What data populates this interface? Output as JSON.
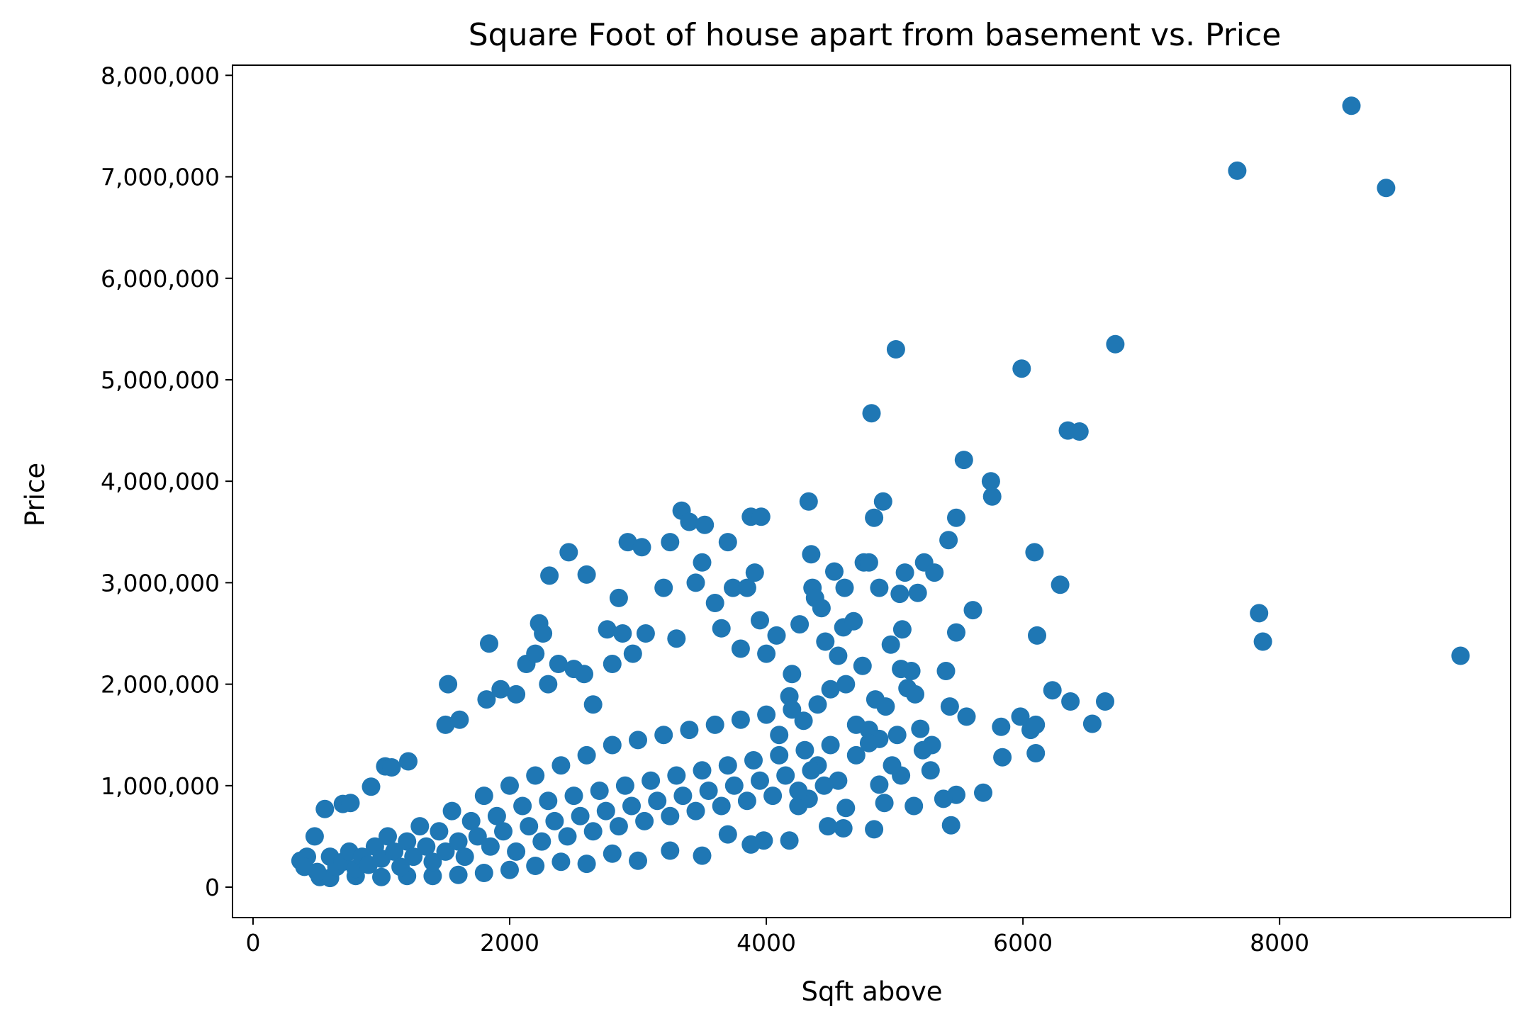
{
  "chart_data": {
    "type": "scatter",
    "title": "Square Foot of house apart from basement vs. Price",
    "xlabel": "Sqft above",
    "ylabel": "Price",
    "xlim": [
      -160,
      9800
    ],
    "ylim": [
      -300000,
      8100000
    ],
    "xticks": [
      0,
      2000,
      4000,
      6000,
      8000
    ],
    "xtick_labels": [
      "0",
      "2000",
      "4000",
      "6000",
      "8000"
    ],
    "yticks": [
      0,
      1000000,
      2000000,
      3000000,
      4000000,
      5000000,
      6000000,
      7000000,
      8000000
    ],
    "ytick_labels": [
      "0",
      "1,000,000",
      "2,000,000",
      "3,000,000",
      "4,000,000",
      "5,000,000",
      "6,000,000",
      "7,000,000",
      "8,000,000"
    ],
    "grid": false,
    "legend": "none",
    "marker_color": "#1f77b4",
    "series": [
      {
        "points": [
          [
            370,
            260000
          ],
          [
            420,
            300000
          ],
          [
            480,
            500000
          ],
          [
            520,
            100000
          ],
          [
            560,
            770000
          ],
          [
            700,
            820000
          ],
          [
            760,
            830000
          ],
          [
            920,
            990000
          ],
          [
            1030,
            1190000
          ],
          [
            1080,
            1180000
          ],
          [
            1210,
            1240000
          ],
          [
            1500,
            1600000
          ],
          [
            1520,
            2000000
          ],
          [
            1610,
            1650000
          ],
          [
            1820,
            1850000
          ],
          [
            1840,
            2400000
          ],
          [
            1930,
            1950000
          ],
          [
            2050,
            1900000
          ],
          [
            2130,
            2200000
          ],
          [
            2200,
            2300000
          ],
          [
            2230,
            2600000
          ],
          [
            2260,
            2500000
          ],
          [
            2300,
            2000000
          ],
          [
            2310,
            3070000
          ],
          [
            2380,
            2200000
          ],
          [
            2460,
            3300000
          ],
          [
            2500,
            2150000
          ],
          [
            2580,
            2100000
          ],
          [
            2600,
            3080000
          ],
          [
            2650,
            1800000
          ],
          [
            2760,
            2540000
          ],
          [
            2800,
            2200000
          ],
          [
            2850,
            2850000
          ],
          [
            2880,
            2500000
          ],
          [
            2920,
            3400000
          ],
          [
            2960,
            2300000
          ],
          [
            3030,
            3350000
          ],
          [
            3060,
            2500000
          ],
          [
            3200,
            2950000
          ],
          [
            3250,
            3400000
          ],
          [
            3300,
            2450000
          ],
          [
            3340,
            3710000
          ],
          [
            3400,
            3600000
          ],
          [
            3450,
            3000000
          ],
          [
            3500,
            3200000
          ],
          [
            3520,
            3570000
          ],
          [
            3600,
            2800000
          ],
          [
            3650,
            2550000
          ],
          [
            3700,
            3400000
          ],
          [
            3740,
            2950000
          ],
          [
            3800,
            2350000
          ],
          [
            3850,
            2950000
          ],
          [
            3880,
            3650000
          ],
          [
            3910,
            3100000
          ],
          [
            3960,
            3650000
          ],
          [
            3950,
            2630000
          ],
          [
            4080,
            2480000
          ],
          [
            4200,
            2100000
          ],
          [
            4260,
            2590000
          ],
          [
            4330,
            3800000
          ],
          [
            4350,
            3280000
          ],
          [
            4360,
            2950000
          ],
          [
            4380,
            2850000
          ],
          [
            4430,
            2750000
          ],
          [
            4460,
            2420000
          ],
          [
            4530,
            3110000
          ],
          [
            4560,
            2280000
          ],
          [
            4600,
            2560000
          ],
          [
            4610,
            2950000
          ],
          [
            4680,
            2620000
          ],
          [
            4760,
            3200000
          ],
          [
            4800,
            3200000
          ],
          [
            4820,
            4670000
          ],
          [
            4840,
            3640000
          ],
          [
            4880,
            2950000
          ],
          [
            4910,
            3800000
          ],
          [
            4970,
            2390000
          ],
          [
            5010,
            5300000
          ],
          [
            5040,
            2890000
          ],
          [
            5060,
            2540000
          ],
          [
            5080,
            3100000
          ],
          [
            5130,
            2130000
          ],
          [
            5180,
            2900000
          ],
          [
            5230,
            3200000
          ],
          [
            5310,
            3100000
          ],
          [
            5420,
            3420000
          ],
          [
            5480,
            3640000
          ],
          [
            5480,
            2510000
          ],
          [
            5540,
            4210000
          ],
          [
            5610,
            2730000
          ],
          [
            5750,
            4000000
          ],
          [
            5760,
            3850000
          ],
          [
            5990,
            5110000
          ],
          [
            6090,
            3300000
          ],
          [
            6110,
            2480000
          ],
          [
            6290,
            2980000
          ],
          [
            6350,
            4500000
          ],
          [
            6440,
            4490000
          ],
          [
            6720,
            5350000
          ],
          [
            7670,
            7060000
          ],
          [
            7840,
            2700000
          ],
          [
            7870,
            2420000
          ],
          [
            8560,
            7700000
          ],
          [
            8830,
            6890000
          ],
          [
            9410,
            2280000
          ],
          [
            4000,
            2300000
          ],
          [
            4100,
            1500000
          ],
          [
            4180,
            1880000
          ],
          [
            4290,
            1640000
          ],
          [
            4500,
            1950000
          ],
          [
            4620,
            2000000
          ],
          [
            4700,
            1600000
          ],
          [
            4750,
            2180000
          ],
          [
            4800,
            1550000
          ],
          [
            4850,
            1850000
          ],
          [
            4880,
            1460000
          ],
          [
            4930,
            1780000
          ],
          [
            5020,
            1500000
          ],
          [
            5050,
            2150000
          ],
          [
            5100,
            1960000
          ],
          [
            5160,
            1900000
          ],
          [
            5200,
            1560000
          ],
          [
            5290,
            1400000
          ],
          [
            5400,
            2130000
          ],
          [
            5430,
            1780000
          ],
          [
            5560,
            1680000
          ],
          [
            5830,
            1580000
          ],
          [
            5980,
            1680000
          ],
          [
            6060,
            1550000
          ],
          [
            6100,
            1600000
          ],
          [
            6230,
            1940000
          ],
          [
            6370,
            1830000
          ],
          [
            6540,
            1610000
          ],
          [
            6640,
            1830000
          ],
          [
            6100,
            1320000
          ],
          [
            5840,
            1280000
          ],
          [
            5690,
            930000
          ],
          [
            5440,
            610000
          ],
          [
            5480,
            910000
          ],
          [
            5380,
            870000
          ],
          [
            5280,
            1150000
          ],
          [
            5220,
            1350000
          ],
          [
            5150,
            800000
          ],
          [
            5050,
            1100000
          ],
          [
            4980,
            1200000
          ],
          [
            4920,
            830000
          ],
          [
            4880,
            1010000
          ],
          [
            4840,
            570000
          ],
          [
            4800,
            1420000
          ],
          [
            4700,
            1300000
          ],
          [
            4600,
            580000
          ],
          [
            4620,
            780000
          ],
          [
            4560,
            1050000
          ],
          [
            4480,
            600000
          ],
          [
            4400,
            1200000
          ],
          [
            4330,
            870000
          ],
          [
            4250,
            800000
          ],
          [
            4180,
            460000
          ],
          [
            3980,
            460000
          ],
          [
            3880,
            420000
          ],
          [
            3700,
            520000
          ],
          [
            3500,
            310000
          ],
          [
            3250,
            360000
          ],
          [
            3000,
            260000
          ],
          [
            2800,
            330000
          ],
          [
            2600,
            230000
          ],
          [
            2400,
            250000
          ],
          [
            2200,
            210000
          ],
          [
            2000,
            170000
          ],
          [
            1800,
            140000
          ],
          [
            1600,
            120000
          ],
          [
            1400,
            110000
          ],
          [
            1200,
            110000
          ],
          [
            1000,
            100000
          ],
          [
            800,
            110000
          ],
          [
            600,
            90000
          ],
          [
            400,
            200000
          ],
          [
            500,
            150000
          ],
          [
            600,
            300000
          ],
          [
            650,
            200000
          ],
          [
            700,
            250000
          ],
          [
            750,
            350000
          ],
          [
            800,
            180000
          ],
          [
            850,
            300000
          ],
          [
            900,
            220000
          ],
          [
            950,
            400000
          ],
          [
            1000,
            280000
          ],
          [
            1050,
            500000
          ],
          [
            1100,
            350000
          ],
          [
            1150,
            200000
          ],
          [
            1200,
            450000
          ],
          [
            1250,
            300000
          ],
          [
            1300,
            600000
          ],
          [
            1350,
            400000
          ],
          [
            1400,
            250000
          ],
          [
            1450,
            550000
          ],
          [
            1500,
            350000
          ],
          [
            1550,
            750000
          ],
          [
            1600,
            450000
          ],
          [
            1650,
            300000
          ],
          [
            1700,
            650000
          ],
          [
            1750,
            500000
          ],
          [
            1800,
            900000
          ],
          [
            1850,
            400000
          ],
          [
            1900,
            700000
          ],
          [
            1950,
            550000
          ],
          [
            2000,
            1000000
          ],
          [
            2050,
            350000
          ],
          [
            2100,
            800000
          ],
          [
            2150,
            600000
          ],
          [
            2200,
            1100000
          ],
          [
            2250,
            450000
          ],
          [
            2300,
            850000
          ],
          [
            2350,
            650000
          ],
          [
            2400,
            1200000
          ],
          [
            2450,
            500000
          ],
          [
            2500,
            900000
          ],
          [
            2550,
            700000
          ],
          [
            2600,
            1300000
          ],
          [
            2650,
            550000
          ],
          [
            2700,
            950000
          ],
          [
            2750,
            750000
          ],
          [
            2800,
            1400000
          ],
          [
            2850,
            600000
          ],
          [
            2900,
            1000000
          ],
          [
            2950,
            800000
          ],
          [
            3000,
            1450000
          ],
          [
            3050,
            650000
          ],
          [
            3100,
            1050000
          ],
          [
            3150,
            850000
          ],
          [
            3200,
            1500000
          ],
          [
            3250,
            700000
          ],
          [
            3300,
            1100000
          ],
          [
            3350,
            900000
          ],
          [
            3400,
            1550000
          ],
          [
            3450,
            750000
          ],
          [
            3500,
            1150000
          ],
          [
            3550,
            950000
          ],
          [
            3600,
            1600000
          ],
          [
            3650,
            800000
          ],
          [
            3700,
            1200000
          ],
          [
            3750,
            1000000
          ],
          [
            3800,
            1650000
          ],
          [
            3850,
            850000
          ],
          [
            3900,
            1250000
          ],
          [
            3950,
            1050000
          ],
          [
            4000,
            1700000
          ],
          [
            4050,
            900000
          ],
          [
            4100,
            1300000
          ],
          [
            4150,
            1100000
          ],
          [
            4200,
            1750000
          ],
          [
            4250,
            950000
          ],
          [
            4300,
            1350000
          ],
          [
            4350,
            1150000
          ],
          [
            4400,
            1800000
          ],
          [
            4450,
            1000000
          ],
          [
            4500,
            1400000
          ]
        ]
      }
    ]
  }
}
